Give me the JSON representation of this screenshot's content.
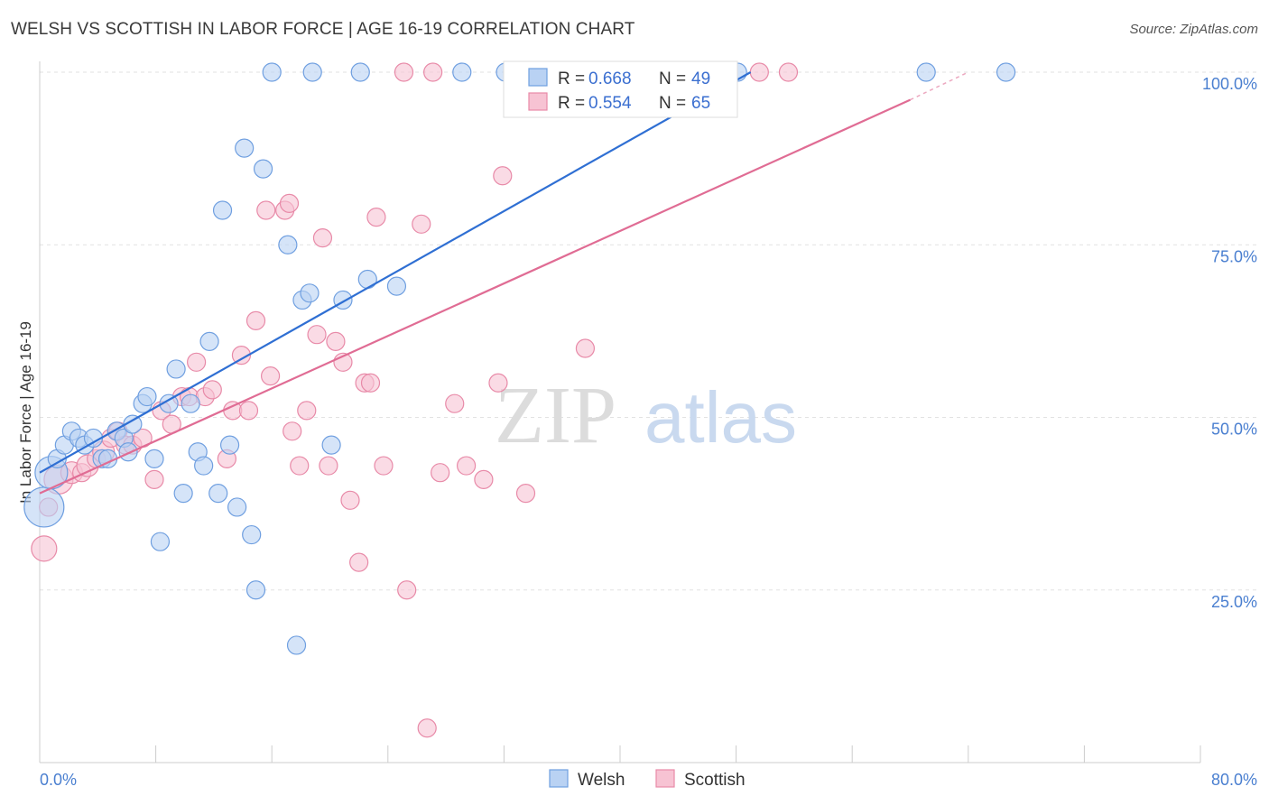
{
  "title": "WELSH VS SCOTTISH IN LABOR FORCE | AGE 16-19 CORRELATION CHART",
  "source": "Source: ZipAtlas.com",
  "watermark": {
    "zip": "ZIP",
    "atlas": "atlas"
  },
  "colors": {
    "welsh_fill": "#b9d2f3",
    "welsh_stroke": "#6f9fe0",
    "welsh_line": "#2f6fd3",
    "scottish_fill": "#f7c3d3",
    "scottish_stroke": "#e88aa8",
    "scottish_line": "#e06c94",
    "axis_label": "#4a7fd0",
    "grid": "#e2e2e2"
  },
  "chart_data": {
    "type": "scatter",
    "ylabel": "In Labor Force | Age 16-19",
    "xlim": [
      0,
      80
    ],
    "ylim": [
      0,
      100
    ],
    "x_tick_labels": [
      "0.0%",
      "80.0%"
    ],
    "y_ticks": [
      {
        "value": 25,
        "label": "25.0%"
      },
      {
        "value": 50,
        "label": "50.0%"
      },
      {
        "value": 75,
        "label": "75.0%"
      },
      {
        "value": 100,
        "label": "100.0%"
      }
    ],
    "legend": {
      "welsh": {
        "r_label": "R = ",
        "r": "0.668",
        "n_label": "N = ",
        "n": "49"
      },
      "scottish": {
        "r_label": "R = ",
        "r": "0.554",
        "n_label": "N = ",
        "n": "65"
      }
    },
    "series": [
      {
        "name": "Welsh",
        "trend": {
          "x0": 0,
          "y0": 42,
          "x1": 49,
          "y1": 100
        },
        "points": [
          [
            0.3,
            37,
            22
          ],
          [
            0.8,
            42,
            18
          ],
          [
            1.2,
            44,
            10
          ],
          [
            1.7,
            46,
            10
          ],
          [
            2.2,
            48,
            10
          ],
          [
            2.7,
            47,
            10
          ],
          [
            3.1,
            46,
            10
          ],
          [
            3.7,
            47,
            10
          ],
          [
            4.3,
            44,
            10
          ],
          [
            4.7,
            44,
            10
          ],
          [
            5.3,
            48,
            10
          ],
          [
            5.8,
            47,
            10
          ],
          [
            6.1,
            45,
            10
          ],
          [
            6.4,
            49,
            10
          ],
          [
            7.1,
            52,
            10
          ],
          [
            7.4,
            53,
            10
          ],
          [
            7.9,
            44,
            10
          ],
          [
            8.3,
            32,
            10
          ],
          [
            8.9,
            52,
            10
          ],
          [
            9.4,
            57,
            10
          ],
          [
            9.9,
            39,
            10
          ],
          [
            10.4,
            52,
            10
          ],
          [
            10.9,
            45,
            10
          ],
          [
            11.3,
            43,
            10
          ],
          [
            11.7,
            61,
            10
          ],
          [
            12.3,
            39,
            10
          ],
          [
            12.6,
            80,
            10
          ],
          [
            13.1,
            46,
            10
          ],
          [
            13.6,
            37,
            10
          ],
          [
            14.1,
            89,
            10
          ],
          [
            14.6,
            33,
            10
          ],
          [
            14.9,
            25,
            10
          ],
          [
            15.4,
            86,
            10
          ],
          [
            16.0,
            100,
            10
          ],
          [
            17.1,
            75,
            10
          ],
          [
            17.7,
            17,
            10
          ],
          [
            18.1,
            67,
            10
          ],
          [
            18.6,
            68,
            10
          ],
          [
            18.8,
            100,
            10
          ],
          [
            20.1,
            46,
            10
          ],
          [
            20.9,
            67,
            10
          ],
          [
            22.1,
            100,
            10
          ],
          [
            22.6,
            70,
            10
          ],
          [
            24.6,
            69,
            10
          ],
          [
            29.1,
            100,
            10
          ],
          [
            32.1,
            100,
            10
          ],
          [
            48.1,
            100,
            10
          ],
          [
            61.1,
            100,
            10
          ],
          [
            66.6,
            100,
            10
          ]
        ]
      },
      {
        "name": "Scottish",
        "trend": {
          "x0": 0,
          "y0": 39,
          "x1": 60,
          "y1": 96
        },
        "trend_ext": {
          "x0": 60,
          "y0": 96,
          "x1": 64,
          "y1": 100
        },
        "points": [
          [
            0.3,
            31,
            14
          ],
          [
            0.6,
            37,
            10
          ],
          [
            1.3,
            41,
            16
          ],
          [
            2.2,
            42,
            12
          ],
          [
            2.9,
            42,
            10
          ],
          [
            3.3,
            43,
            12
          ],
          [
            3.9,
            44,
            10
          ],
          [
            4.4,
            45,
            12
          ],
          [
            4.9,
            47,
            10
          ],
          [
            5.4,
            48,
            10
          ],
          [
            5.9,
            46,
            10
          ],
          [
            6.4,
            46,
            10
          ],
          [
            7.1,
            47,
            10
          ],
          [
            7.9,
            41,
            10
          ],
          [
            8.4,
            51,
            10
          ],
          [
            9.1,
            49,
            10
          ],
          [
            9.8,
            53,
            10
          ],
          [
            10.3,
            53,
            10
          ],
          [
            10.8,
            58,
            10
          ],
          [
            11.4,
            53,
            10
          ],
          [
            11.9,
            54,
            10
          ],
          [
            12.9,
            44,
            10
          ],
          [
            13.3,
            51,
            10
          ],
          [
            13.9,
            59,
            10
          ],
          [
            14.4,
            51,
            10
          ],
          [
            14.9,
            64,
            10
          ],
          [
            15.6,
            80,
            10
          ],
          [
            15.9,
            56,
            10
          ],
          [
            16.9,
            80,
            10
          ],
          [
            17.2,
            81,
            10
          ],
          [
            17.4,
            48,
            10
          ],
          [
            17.9,
            43,
            10
          ],
          [
            18.4,
            51,
            10
          ],
          [
            19.1,
            62,
            10
          ],
          [
            19.5,
            76,
            10
          ],
          [
            19.9,
            43,
            10
          ],
          [
            20.4,
            61,
            10
          ],
          [
            20.9,
            58,
            10
          ],
          [
            21.4,
            38,
            10
          ],
          [
            22.0,
            29,
            10
          ],
          [
            22.4,
            55,
            10
          ],
          [
            22.8,
            55,
            10
          ],
          [
            23.2,
            79,
            10
          ],
          [
            23.7,
            43,
            10
          ],
          [
            25.3,
            25,
            10
          ],
          [
            26.3,
            78,
            10
          ],
          [
            26.7,
            5,
            10
          ],
          [
            27.6,
            42,
            10
          ],
          [
            28.6,
            52,
            10
          ],
          [
            29.4,
            43,
            10
          ],
          [
            30.6,
            41,
            10
          ],
          [
            31.6,
            55,
            10
          ],
          [
            31.9,
            85,
            10
          ],
          [
            32.6,
            100,
            10
          ],
          [
            33.5,
            39,
            10
          ],
          [
            35.6,
            100,
            10
          ],
          [
            36.6,
            100,
            10
          ],
          [
            37.6,
            60,
            10
          ],
          [
            39.6,
            100,
            10
          ],
          [
            41.6,
            100,
            10
          ],
          [
            44.6,
            100,
            10
          ],
          [
            49.6,
            100,
            10
          ],
          [
            51.6,
            100,
            10
          ],
          [
            27.1,
            100,
            10
          ],
          [
            25.1,
            100,
            10
          ]
        ]
      }
    ],
    "bottom_legend": [
      "Welsh",
      "Scottish"
    ]
  }
}
